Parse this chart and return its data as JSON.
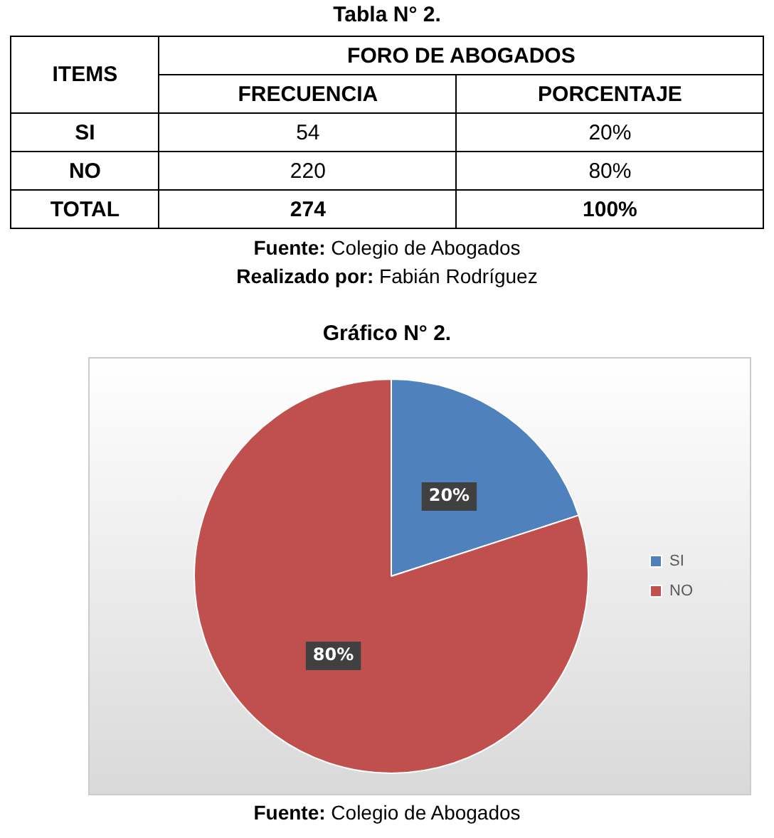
{
  "chart_data": [
    {
      "type": "other",
      "title": "Tabla N° 2.",
      "annotations": [
        "ITEMS",
        "FORO DE ABOGADOS",
        "FRECUENCIA",
        "PORCENTAJE",
        "SI",
        "54",
        "20%",
        "NO",
        "220",
        "80%",
        "TOTAL",
        "274",
        "100%",
        "Fuente: Colegio de Abogados",
        "Realizado por: Fabián Rodríguez"
      ]
    },
    {
      "type": "pie",
      "title": "Gráfico N° 2.",
      "categories": [
        "SI",
        "NO"
      ],
      "values": [
        20,
        80
      ],
      "colors": [
        "#4f81bd",
        "#c0504d"
      ],
      "value_labels": [
        "20%",
        "80%"
      ],
      "legend": "right",
      "annotations": [
        "Fuente: Colegio de Abogados"
      ]
    }
  ]
}
